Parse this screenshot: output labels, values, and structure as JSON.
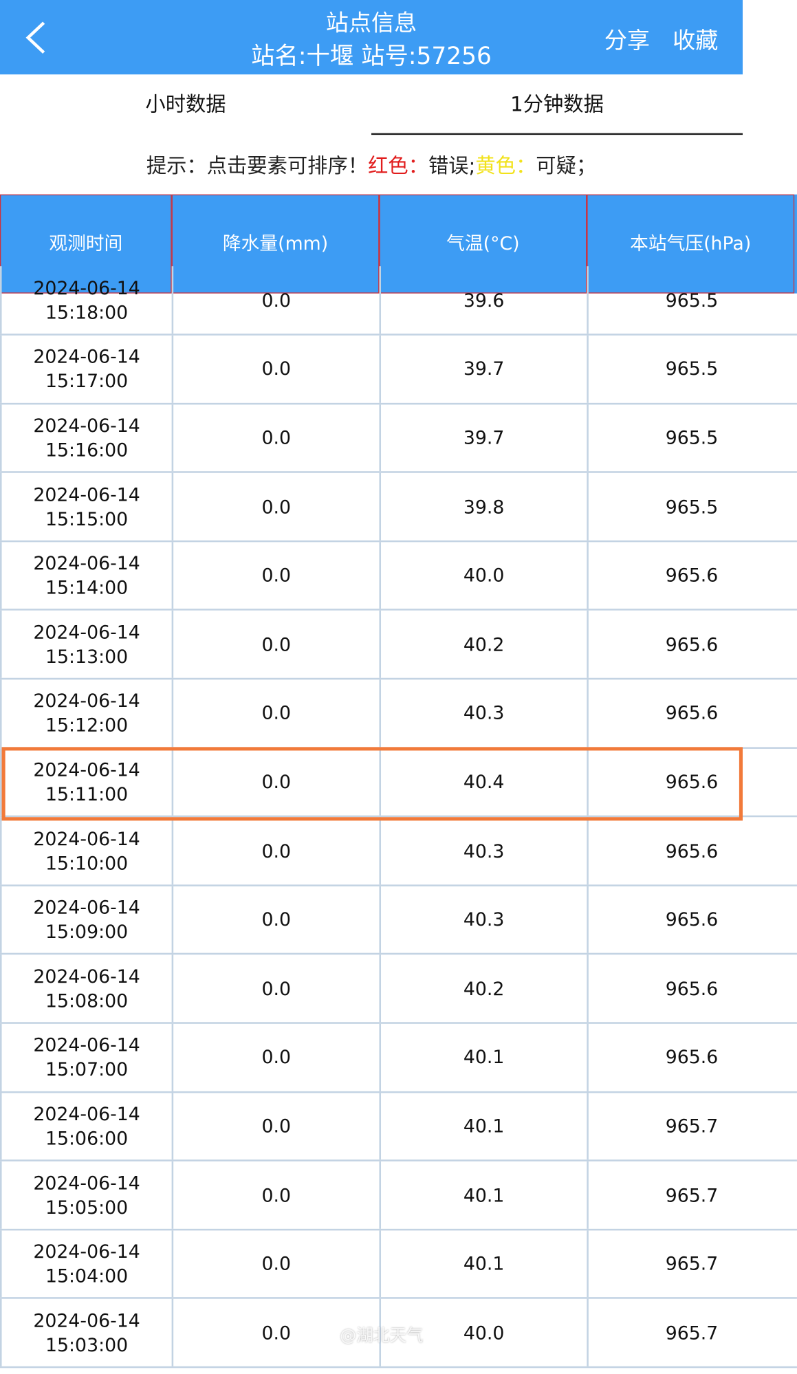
{
  "header": {
    "title": "站点信息",
    "subtitle": "站名:十堰 站号:57256",
    "share": "分享",
    "favorite": "收藏"
  },
  "tabs": [
    "小时数据",
    "1分钟数据"
  ],
  "hint": {
    "prefix": "提示：点击要素可排序！",
    "red_label": "红色：",
    "red_meaning": "错误;",
    "yellow_label": "黄色：",
    "yellow_meaning": "可疑；"
  },
  "table": {
    "columns": [
      "观测时间",
      "降水量(mm)",
      "气温(°C)",
      "本站气压(hPa)"
    ],
    "rows": [
      {
        "date": "2024-06-14",
        "time": "15:18:00",
        "precipitation": "0.0",
        "temperature": "39.6",
        "pressure": "965.5"
      },
      {
        "date": "2024-06-14",
        "time": "15:17:00",
        "precipitation": "0.0",
        "temperature": "39.7",
        "pressure": "965.5"
      },
      {
        "date": "2024-06-14",
        "time": "15:16:00",
        "precipitation": "0.0",
        "temperature": "39.7",
        "pressure": "965.5"
      },
      {
        "date": "2024-06-14",
        "time": "15:15:00",
        "precipitation": "0.0",
        "temperature": "39.8",
        "pressure": "965.5"
      },
      {
        "date": "2024-06-14",
        "time": "15:14:00",
        "precipitation": "0.0",
        "temperature": "40.0",
        "pressure": "965.6"
      },
      {
        "date": "2024-06-14",
        "time": "15:13:00",
        "precipitation": "0.0",
        "temperature": "40.2",
        "pressure": "965.6"
      },
      {
        "date": "2024-06-14",
        "time": "15:12:00",
        "precipitation": "0.0",
        "temperature": "40.3",
        "pressure": "965.6"
      },
      {
        "date": "2024-06-14",
        "time": "15:11:00",
        "precipitation": "0.0",
        "temperature": "40.4",
        "pressure": "965.6"
      },
      {
        "date": "2024-06-14",
        "time": "15:10:00",
        "precipitation": "0.0",
        "temperature": "40.3",
        "pressure": "965.6"
      },
      {
        "date": "2024-06-14",
        "time": "15:09:00",
        "precipitation": "0.0",
        "temperature": "40.3",
        "pressure": "965.6"
      },
      {
        "date": "2024-06-14",
        "time": "15:08:00",
        "precipitation": "0.0",
        "temperature": "40.2",
        "pressure": "965.6"
      },
      {
        "date": "2024-06-14",
        "time": "15:07:00",
        "precipitation": "0.0",
        "temperature": "40.1",
        "pressure": "965.6"
      },
      {
        "date": "2024-06-14",
        "time": "15:06:00",
        "precipitation": "0.0",
        "temperature": "40.1",
        "pressure": "965.7"
      },
      {
        "date": "2024-06-14",
        "time": "15:05:00",
        "precipitation": "0.0",
        "temperature": "40.1",
        "pressure": "965.7"
      },
      {
        "date": "2024-06-14",
        "time": "15:04:00",
        "precipitation": "0.0",
        "temperature": "40.1",
        "pressure": "965.7"
      },
      {
        "date": "2024-06-14",
        "time": "15:03:00",
        "precipitation": "0.0",
        "temperature": "40.0",
        "pressure": "965.7"
      }
    ]
  },
  "watermark": "@湖北天气"
}
